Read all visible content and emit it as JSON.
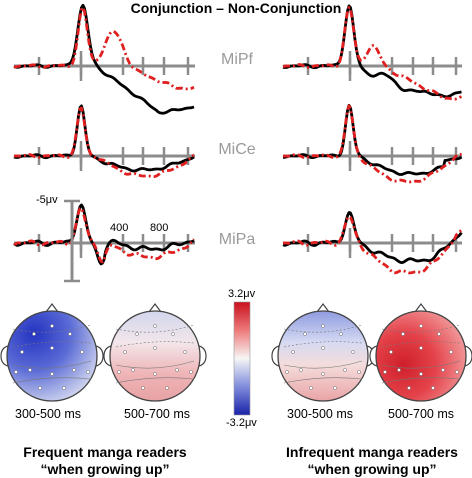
{
  "figure": {
    "title": "Conjunction – Non-Conjunction",
    "electrodes": [
      "MiPf",
      "MiCe",
      "MiPa"
    ],
    "axis_labels": {
      "amplitude": "-5μv",
      "t1": "400",
      "t2": "800"
    },
    "colorbar": {
      "max": "3.2μv",
      "min": "-3.2μv"
    },
    "time_windows": [
      "300-500 ms",
      "500-700 ms"
    ],
    "groups": [
      {
        "line1": "Frequent manga readers",
        "line2": "“when growing up”"
      },
      {
        "line1": "Infrequent manga readers",
        "line2": "“when growing up”"
      }
    ],
    "colors": {
      "series_black": "#000000",
      "series_red": "#e02020",
      "axis": "#8c8c8c",
      "negative": "#2233bb",
      "positive": "#dd1f2f"
    }
  }
}
